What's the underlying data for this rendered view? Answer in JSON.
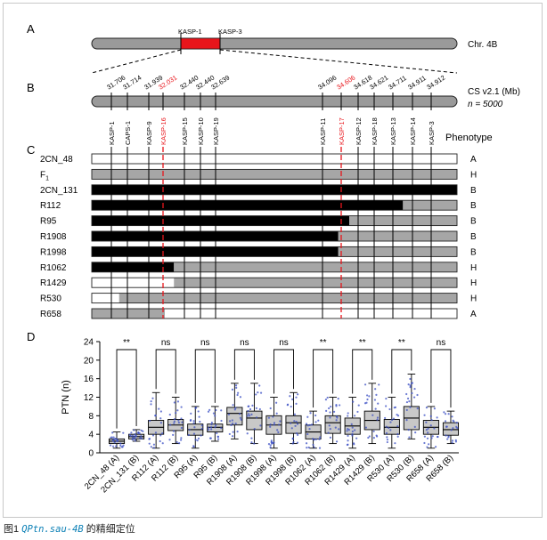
{
  "panels": {
    "a": "A",
    "b": "B",
    "c": "C",
    "d": "D"
  },
  "panelA": {
    "chromosome_label": "Chr. 4B",
    "marker_left": "KASP-1",
    "marker_right": "KASP-3"
  },
  "panelB": {
    "reference_label": "CS v2.1 (Mb)",
    "n_label": "n = 5000",
    "positions": [
      {
        "value": "31.706",
        "highlight": false
      },
      {
        "value": "31.714",
        "highlight": false
      },
      {
        "value": "31.939",
        "highlight": false
      },
      {
        "value": "32.031",
        "highlight": true
      },
      {
        "value": "32.440",
        "highlight": false
      },
      {
        "value": "32.440",
        "highlight": false
      },
      {
        "value": "32.639",
        "highlight": false
      },
      {
        "value": "34.096",
        "highlight": false
      },
      {
        "value": "34.606",
        "highlight": true
      },
      {
        "value": "34.618",
        "highlight": false
      },
      {
        "value": "34.621",
        "highlight": false
      },
      {
        "value": "34.711",
        "highlight": false
      },
      {
        "value": "34.911",
        "highlight": false
      },
      {
        "value": "34.912",
        "highlight": false
      }
    ]
  },
  "panelC": {
    "phenotype_header": "Phenotype",
    "markers": [
      {
        "name": "KASP-1",
        "highlight": false
      },
      {
        "name": "CAPS-1",
        "highlight": false
      },
      {
        "name": "KASP-9",
        "highlight": false
      },
      {
        "name": "KASP-16",
        "highlight": true
      },
      {
        "name": "KASP-15",
        "highlight": false
      },
      {
        "name": "KASP-10",
        "highlight": false
      },
      {
        "name": "KASP-19",
        "highlight": false
      },
      {
        "name": "KASP-11",
        "highlight": false
      },
      {
        "name": "KASP-17",
        "highlight": true
      },
      {
        "name": "KASP-12",
        "highlight": false
      },
      {
        "name": "KASP-18",
        "highlight": false
      },
      {
        "name": "KASP-13",
        "highlight": false
      },
      {
        "name": "KASP-14",
        "highlight": false
      },
      {
        "name": "KASP-3",
        "highlight": false
      }
    ],
    "rows": [
      {
        "label": "2CN_48",
        "phenotype": "A",
        "segments": [
          [
            0,
            1,
            "white"
          ]
        ]
      },
      {
        "label": "F",
        "sub": "1",
        "phenotype": "H",
        "segments": [
          [
            0,
            1,
            "gray"
          ]
        ]
      },
      {
        "label": "2CN_131",
        "phenotype": "B",
        "segments": [
          [
            0,
            1,
            "black"
          ]
        ]
      },
      {
        "label": "R112",
        "phenotype": "B",
        "segments": [
          [
            0,
            0.852,
            "black"
          ],
          [
            0.852,
            1,
            "gray"
          ]
        ]
      },
      {
        "label": "R95",
        "phenotype": "B",
        "segments": [
          [
            0,
            0.705,
            "black"
          ],
          [
            0.705,
            1,
            "gray"
          ]
        ]
      },
      {
        "label": "R1908",
        "phenotype": "B",
        "segments": [
          [
            0,
            0.675,
            "black"
          ],
          [
            0.675,
            1,
            "gray"
          ]
        ]
      },
      {
        "label": "R1998",
        "phenotype": "B",
        "segments": [
          [
            0,
            0.675,
            "black"
          ],
          [
            0.675,
            1,
            "gray"
          ]
        ]
      },
      {
        "label": "R1062",
        "phenotype": "H",
        "segments": [
          [
            0,
            0.225,
            "black"
          ],
          [
            0.225,
            1,
            "gray"
          ]
        ]
      },
      {
        "label": "R1429",
        "phenotype": "H",
        "segments": [
          [
            0,
            0.225,
            "white"
          ],
          [
            0.225,
            1,
            "gray"
          ]
        ]
      },
      {
        "label": "R530",
        "phenotype": "H",
        "segments": [
          [
            0,
            0.075,
            "white"
          ],
          [
            0.075,
            1,
            "gray"
          ]
        ]
      },
      {
        "label": "R658",
        "phenotype": "A",
        "segments": [
          [
            0,
            0.2,
            "gray"
          ],
          [
            0.2,
            1,
            "white"
          ]
        ]
      }
    ]
  },
  "chart_data": {
    "type": "box",
    "ylabel": "PTN (n)",
    "ylim": [
      0,
      24
    ],
    "yticks": [
      0,
      4,
      8,
      12,
      16,
      20,
      24
    ],
    "categories": [
      "2CN_48 (A)",
      "2CN_131 (B)",
      "R112 (A)",
      "R112 (B)",
      "R95 (A)",
      "R95 (B)",
      "R1908 (A)",
      "R1908 (B)",
      "R1998 (A)",
      "R1998 (B)",
      "R1062 (A)",
      "R1062 (B)",
      "R1429 (A)",
      "R1429 (B)",
      "R530 (A)",
      "R530 (B)",
      "R658 (A)",
      "R658 (B)"
    ],
    "boxes": [
      {
        "q1": 2.0,
        "median": 2.5,
        "q3": 3.0,
        "min": 1.0,
        "max": 4.5
      },
      {
        "q1": 3.0,
        "median": 3.5,
        "q3": 4.0,
        "min": 2.5,
        "max": 5.0
      },
      {
        "q1": 4.0,
        "median": 5.5,
        "q3": 7.0,
        "min": 1.0,
        "max": 13.0
      },
      {
        "q1": 4.8,
        "median": 6.0,
        "q3": 7.2,
        "min": 2.0,
        "max": 12.0
      },
      {
        "q1": 3.8,
        "median": 5.0,
        "q3": 6.2,
        "min": 1.0,
        "max": 10.0
      },
      {
        "q1": 4.5,
        "median": 5.5,
        "q3": 6.2,
        "min": 2.5,
        "max": 10.0
      },
      {
        "q1": 6.0,
        "median": 8.5,
        "q3": 9.8,
        "min": 3.0,
        "max": 15.0
      },
      {
        "q1": 5.0,
        "median": 7.5,
        "q3": 9.0,
        "min": 2.0,
        "max": 15.0
      },
      {
        "q1": 4.0,
        "median": 6.0,
        "q3": 8.0,
        "min": 1.0,
        "max": 12.0
      },
      {
        "q1": 4.2,
        "median": 6.5,
        "q3": 8.0,
        "min": 2.0,
        "max": 13.0
      },
      {
        "q1": 3.0,
        "median": 4.5,
        "q3": 6.0,
        "min": 1.0,
        "max": 9.0
      },
      {
        "q1": 4.2,
        "median": 6.5,
        "q3": 8.0,
        "min": 2.0,
        "max": 12.0
      },
      {
        "q1": 4.0,
        "median": 5.8,
        "q3": 7.5,
        "min": 1.0,
        "max": 12.0
      },
      {
        "q1": 5.0,
        "median": 7.0,
        "q3": 9.0,
        "min": 2.0,
        "max": 15.0
      },
      {
        "q1": 4.0,
        "median": 5.5,
        "q3": 7.2,
        "min": 1.0,
        "max": 12.0
      },
      {
        "q1": 5.0,
        "median": 7.5,
        "q3": 10.0,
        "min": 3.0,
        "max": 17.0
      },
      {
        "q1": 4.0,
        "median": 5.5,
        "q3": 7.0,
        "min": 1.0,
        "max": 10.0
      },
      {
        "q1": 3.8,
        "median": 5.0,
        "q3": 6.5,
        "min": 2.0,
        "max": 9.0
      }
    ],
    "significance": [
      "**",
      "ns",
      "ns",
      "ns",
      "ns",
      "**",
      "**",
      "**",
      "ns"
    ]
  },
  "caption": {
    "prefix": "图1 ",
    "gene": "QPtn.sau-4B",
    "suffix": " 的精细定位"
  },
  "colors": {
    "highlight": "#e8151b",
    "chrom_gray": "#9a9a9a",
    "gray_seg": "#a6a6a6",
    "dots": "#3b4fc4",
    "box_fill": "#c8c8c8"
  }
}
